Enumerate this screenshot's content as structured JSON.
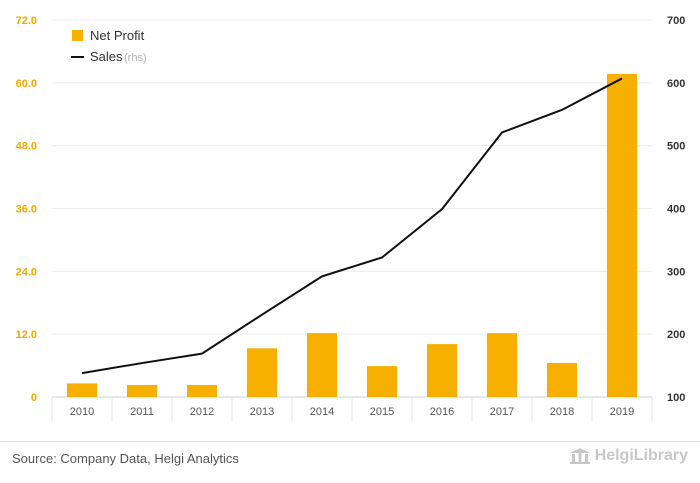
{
  "chart_data": {
    "type": "bar+line",
    "categories": [
      "2010",
      "2011",
      "2012",
      "2013",
      "2014",
      "2015",
      "2016",
      "2017",
      "2018",
      "2019"
    ],
    "series": [
      {
        "name": "Net Profit",
        "type": "bar",
        "axis": "left",
        "color": "#f7b000",
        "values": [
          2.6,
          2.3,
          2.3,
          9.3,
          12.2,
          5.9,
          10.1,
          12.2,
          6.5,
          61.7
        ]
      },
      {
        "name": "Sales",
        "name_suffix": "(rhs)",
        "type": "line",
        "axis": "right",
        "color": "#111111",
        "values": [
          138,
          154,
          169,
          231,
          292,
          322,
          399,
          521,
          557,
          607
        ]
      }
    ],
    "y_left": {
      "min": 0,
      "max": 72,
      "ticks": [
        "0",
        "12.0",
        "24.0",
        "36.0",
        "48.0",
        "60.0",
        "72.0"
      ]
    },
    "y_right": {
      "min": 100,
      "max": 700,
      "ticks": [
        "100",
        "200",
        "300",
        "400",
        "500",
        "600",
        "700"
      ]
    },
    "grid": true,
    "legend_position": "top-left"
  },
  "footer": {
    "source": "Source: Company Data, Helgi Analytics",
    "brand": "HelgiLibrary"
  }
}
